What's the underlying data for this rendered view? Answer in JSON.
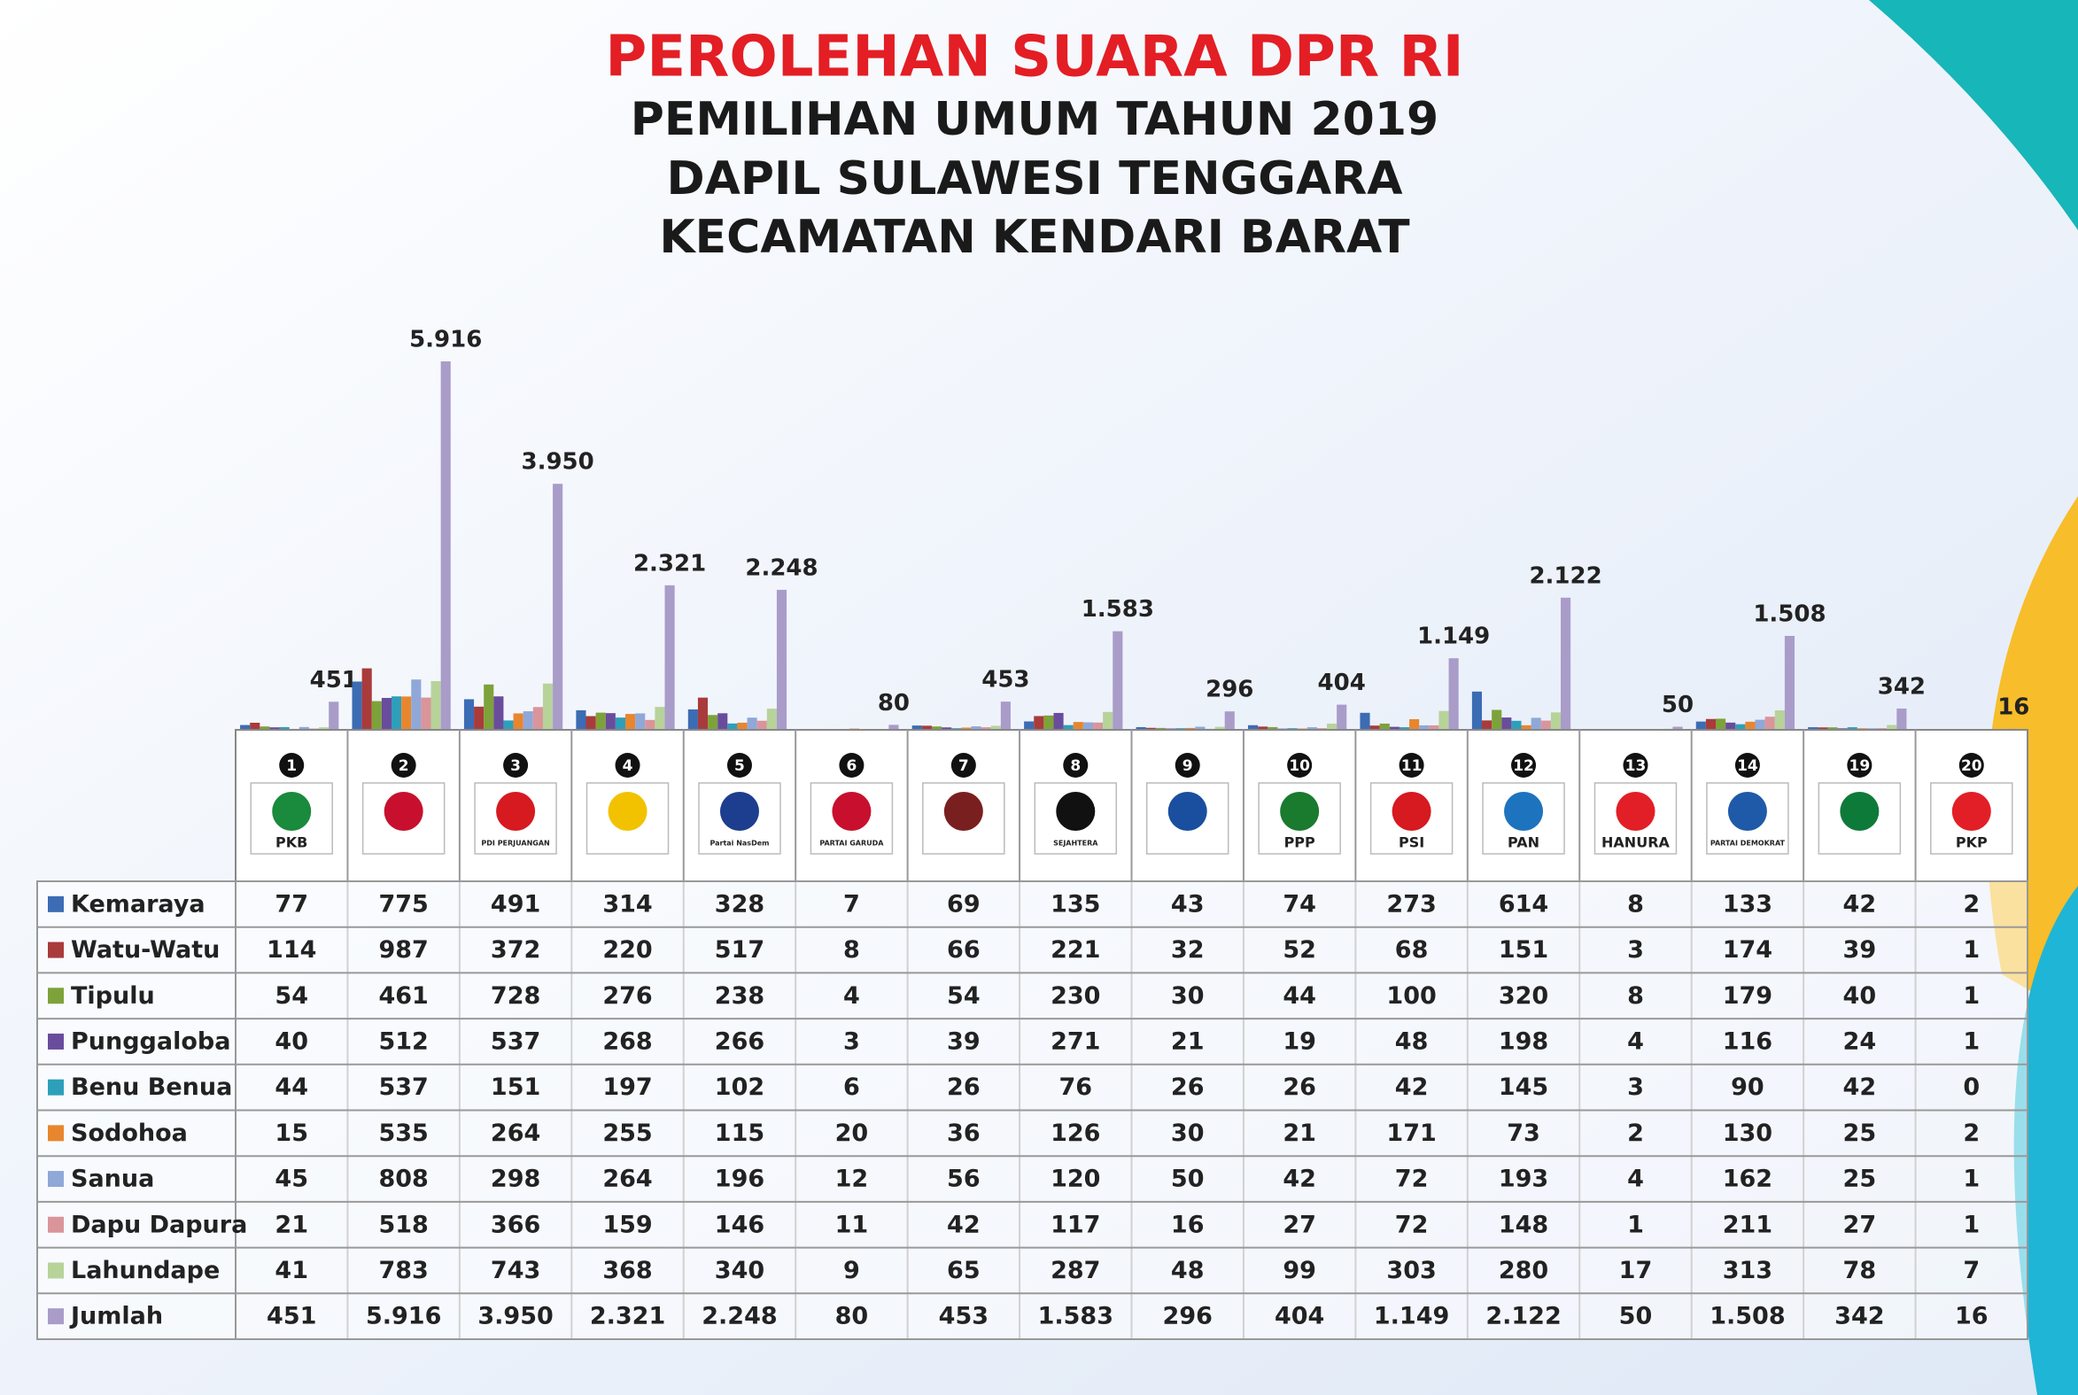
{
  "chart_data": {
    "type": "bar",
    "title": "PEROLEHAN SUARA DPR RI",
    "subtitle": [
      "PEMILIHAN UMUM TAHUN 2019",
      "DAPIL SULAWESI TENGGARA",
      "KECAMATAN KENDARI BARAT"
    ],
    "categories": [
      "1",
      "2",
      "3",
      "4",
      "5",
      "6",
      "7",
      "8",
      "9",
      "10",
      "11",
      "12",
      "13",
      "14",
      "19",
      "20"
    ],
    "logos": [
      "PKB",
      null,
      "PDI PERJUANGAN",
      null,
      "Partai NasDem",
      "PARTAI GARUDA",
      null,
      "SEJAHTERA",
      null,
      "PPP",
      "PSI",
      "PAN",
      "HANURA",
      "PARTAI DEMOKRAT",
      null,
      "PKP"
    ],
    "logo_colors": [
      "#1a8a3c",
      "#c8102e",
      "#d71920",
      "#f2c200",
      "#1d3d8f",
      "#c8102e",
      "#7a1f1f",
      "#111111",
      "#1a4fa0",
      "#1a7a2e",
      "#d71920",
      "#1e73be",
      "#e21f26",
      "#1e5aa8",
      "#0e7a3a",
      "#e21f26"
    ],
    "series": [
      {
        "name": "Kemaraya",
        "color": "#3b6cb4",
        "values": [
          77,
          775,
          491,
          314,
          328,
          7,
          69,
          135,
          43,
          74,
          273,
          614,
          8,
          133,
          42,
          2
        ]
      },
      {
        "name": "Watu-Watu",
        "color": "#a93b3b",
        "values": [
          114,
          987,
          372,
          220,
          517,
          8,
          66,
          221,
          32,
          52,
          68,
          151,
          3,
          174,
          39,
          1
        ]
      },
      {
        "name": "Tipulu",
        "color": "#7ea23a",
        "values": [
          54,
          461,
          728,
          276,
          238,
          4,
          54,
          230,
          30,
          44,
          100,
          320,
          8,
          179,
          40,
          1
        ]
      },
      {
        "name": "Punggaloba",
        "color": "#6a4c9c",
        "values": [
          40,
          512,
          537,
          268,
          266,
          3,
          39,
          271,
          21,
          19,
          48,
          198,
          4,
          116,
          24,
          1
        ]
      },
      {
        "name": "Benu Benua",
        "color": "#2e9fba",
        "values": [
          44,
          537,
          151,
          197,
          102,
          6,
          26,
          76,
          26,
          26,
          42,
          145,
          3,
          90,
          42,
          0
        ]
      },
      {
        "name": "Sodohoa",
        "color": "#e8862e",
        "values": [
          15,
          535,
          264,
          255,
          115,
          20,
          36,
          126,
          30,
          21,
          171,
          73,
          2,
          130,
          25,
          2
        ]
      },
      {
        "name": "Sanua",
        "color": "#8fa8d8",
        "values": [
          45,
          808,
          298,
          264,
          196,
          12,
          56,
          120,
          50,
          42,
          72,
          193,
          4,
          162,
          25,
          1
        ]
      },
      {
        "name": "Dapu Dapura",
        "color": "#d9959a",
        "values": [
          21,
          518,
          366,
          159,
          146,
          11,
          42,
          117,
          16,
          27,
          72,
          148,
          1,
          211,
          27,
          1
        ]
      },
      {
        "name": "Lahundape",
        "color": "#b7d39a",
        "values": [
          41,
          783,
          743,
          368,
          340,
          9,
          65,
          287,
          48,
          99,
          303,
          280,
          17,
          313,
          78,
          7
        ]
      },
      {
        "name": "Jumlah",
        "color": "#a99cc9",
        "values": [
          451,
          5916,
          3950,
          2321,
          2248,
          80,
          453,
          1583,
          296,
          404,
          1149,
          2122,
          50,
          1508,
          342,
          16
        ],
        "value_labels": [
          "451",
          "5.916",
          "3.950",
          "2.321",
          "2.248",
          "80",
          "453",
          "1.583",
          "296",
          "404",
          "1.149",
          "2.122",
          "50",
          "1.508",
          "342",
          "16"
        ]
      }
    ]
  }
}
